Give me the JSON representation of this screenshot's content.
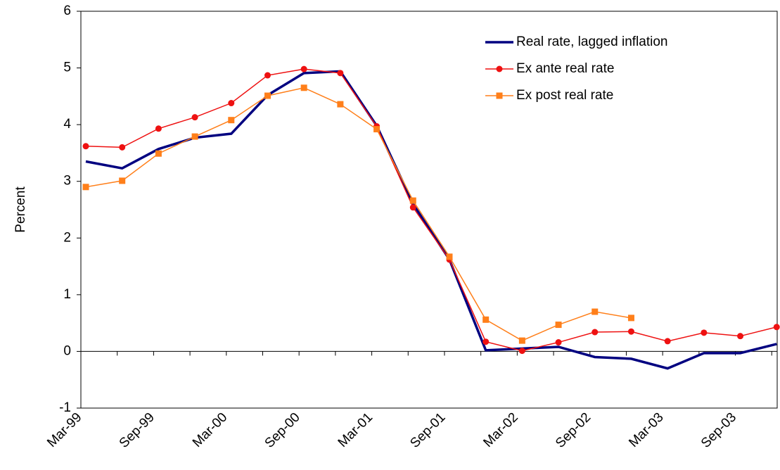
{
  "chart_data": {
    "type": "line",
    "y_label": "Percent",
    "categories": [
      "Mar-99",
      null,
      "Sep-99",
      null,
      "Mar-00",
      null,
      "Sep-00",
      null,
      "Mar-01",
      null,
      "Sep-01",
      null,
      "Mar-02",
      null,
      "Sep-02",
      null,
      "Mar-03",
      null,
      "Sep-03",
      null
    ],
    "series": [
      {
        "name": "Real rate, lagged inflation",
        "color": "#000080",
        "marker": "none",
        "values": [
          3.35,
          3.23,
          3.57,
          3.77,
          3.84,
          4.52,
          4.91,
          4.94,
          3.98,
          2.6,
          1.62,
          0.02,
          0.05,
          0.08,
          -0.1,
          -0.13,
          -0.3,
          -0.03,
          -0.03,
          0.13
        ]
      },
      {
        "name": "Ex ante real rate",
        "color": "#ee1111",
        "marker": "circle",
        "values": [
          3.62,
          3.6,
          3.93,
          4.13,
          4.38,
          4.87,
          4.98,
          4.91,
          3.97,
          2.54,
          1.62,
          0.17,
          0.01,
          0.16,
          0.34,
          0.35,
          0.18,
          0.33,
          0.27,
          0.43
        ]
      },
      {
        "name": "Ex post real rate",
        "color": "#ff7f1a",
        "marker": "square",
        "values": [
          2.9,
          3.01,
          3.49,
          3.79,
          4.08,
          4.51,
          4.65,
          4.36,
          3.92,
          2.66,
          1.67,
          0.56,
          0.19,
          0.47,
          0.7,
          0.59,
          null,
          null,
          null,
          null
        ]
      }
    ],
    "ylim": [
      -1,
      6
    ],
    "yticks": [
      -1,
      0,
      1,
      2,
      3,
      4,
      5,
      6
    ],
    "grid": false,
    "legend": "upper right"
  }
}
